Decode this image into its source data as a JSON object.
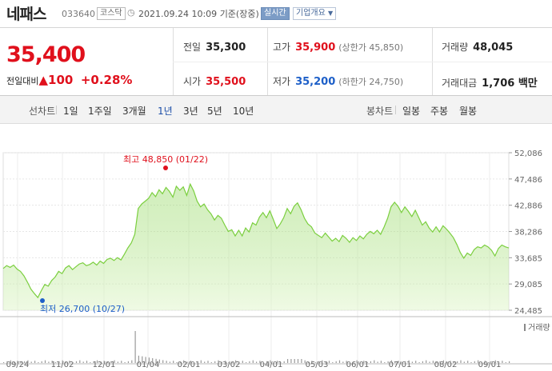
{
  "header": {
    "name": "네패스",
    "code": "033640",
    "market": "코스닥",
    "datetime": "2021.09.24 10:09",
    "basis": "기준(장중)",
    "realtime": "실시간",
    "company_info": "기업개요"
  },
  "quote": {
    "price": "35,400",
    "change_label": "전일대비",
    "change_value": "100",
    "change_pct": "+0.28%",
    "prev_close_label": "전일",
    "prev_close": "35,300",
    "high_label": "고가",
    "high": "35,900",
    "upper_limit": "(상한가 45,850)",
    "volume_label": "거래량",
    "volume": "48,045",
    "open_label": "시가",
    "open": "35,500",
    "low_label": "저가",
    "low": "35,200",
    "lower_limit": "(하한가 24,750)",
    "amount_label": "거래대금",
    "amount": "1,706 백만"
  },
  "tabs": {
    "line_label": "선차트",
    "periods": [
      "1일",
      "1주일",
      "3개월",
      "1년",
      "3년",
      "5년",
      "10년"
    ],
    "active_period": "1년",
    "candle_label": "봉차트",
    "candles": [
      "일봉",
      "주봉",
      "월봉"
    ]
  },
  "colors": {
    "up": "#e0101c",
    "down": "#1d5fc8",
    "line": "#7bcf3f",
    "area": "#dff5c9"
  },
  "chart_data": {
    "type": "area",
    "y_ticks": [
      "52,086",
      "47,486",
      "42,886",
      "38,286",
      "33,685",
      "29,085",
      "24,485"
    ],
    "ylim": [
      24485,
      52086
    ],
    "x_ticks": [
      "09/24",
      "11/02",
      "12/01",
      "01/04",
      "02/01",
      "03/02",
      "04/01",
      "05/03",
      "06/01",
      "07/01",
      "08/02",
      "09/01"
    ],
    "max_label": "최고 48,850 (01/22)",
    "min_label": "최저 26,700 (10/27)",
    "volume_legend": "거래량",
    "values": [
      31800,
      32300,
      32000,
      32400,
      31700,
      31300,
      30500,
      29400,
      28200,
      27400,
      26700,
      27900,
      29000,
      28700,
      29700,
      30300,
      31300,
      30900,
      31900,
      32300,
      31600,
      32100,
      32600,
      32800,
      32300,
      32500,
      32900,
      32400,
      33100,
      32700,
      33400,
      33600,
      33200,
      33700,
      33300,
      34300,
      35400,
      36300,
      37800,
      42300,
      43100,
      43600,
      44100,
      45100,
      44400,
      45600,
      44900,
      46000,
      45300,
      44300,
      46200,
      45500,
      46100,
      44600,
      46600,
      45400,
      43600,
      42600,
      43100,
      42100,
      41400,
      40300,
      41100,
      40600,
      39400,
      38300,
      38600,
      37500,
      38500,
      37500,
      38900,
      38200,
      39800,
      39400,
      40800,
      41600,
      40700,
      41900,
      40400,
      38800,
      39600,
      40700,
      42300,
      41400,
      42700,
      43300,
      42100,
      40600,
      39600,
      39100,
      38000,
      37600,
      37200,
      38000,
      37300,
      36600,
      37100,
      36500,
      37600,
      37100,
      36400,
      37200,
      36700,
      37500,
      37000,
      37800,
      38300,
      37900,
      38500,
      37800,
      39100,
      40600,
      42600,
      43400,
      42700,
      41600,
      42600,
      41800,
      40900,
      42000,
      40700,
      39400,
      40000,
      38900,
      38200,
      39100,
      38200,
      39300,
      38700,
      38000,
      37200,
      36000,
      34600,
      33600,
      34500,
      34100,
      35100,
      35600,
      35400,
      35900,
      35600,
      35000,
      34000,
      35300,
      35900,
      35600,
      35400
    ]
  }
}
